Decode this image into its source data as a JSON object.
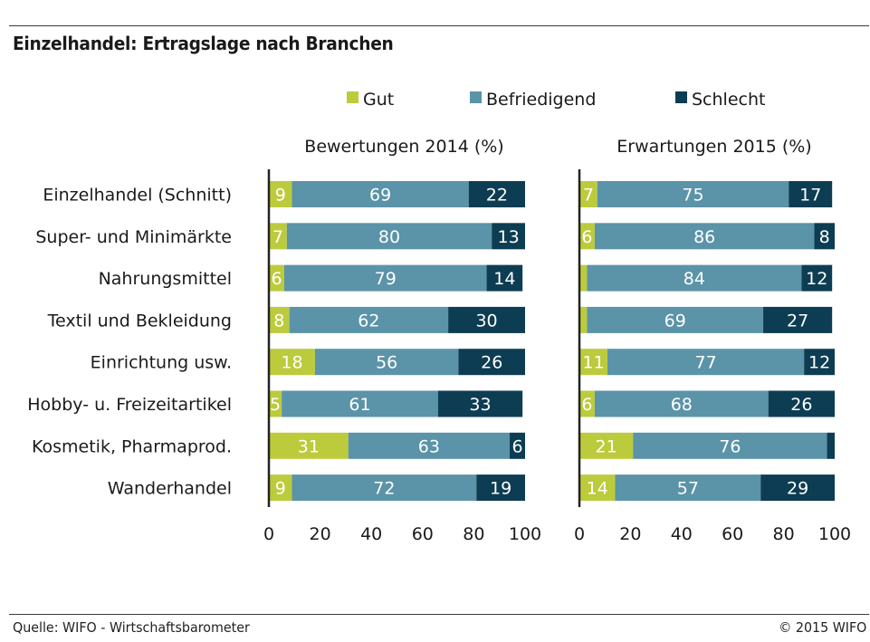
{
  "title": "Einzelhandel: Ertragslage nach Branchen",
  "source": "Quelle: WIFO - Wirtschaftsbarometer",
  "copyright": "© 2015 WIFO",
  "colors": {
    "gut": "#bccb3c",
    "befriedigend": "#5b93a8",
    "schlecht": "#0d3d52",
    "text": "#1a1a1a",
    "axis": "#222222"
  },
  "chart_data": {
    "type": "bar",
    "stacked": true,
    "orientation": "horizontal",
    "legend": [
      "Gut",
      "Befriedigend",
      "Schlecht"
    ],
    "legend_position": "top",
    "categories": [
      "Einzelhandel (Schnitt)",
      "Super- und Minimärkte",
      "Nahrungsmittel",
      "Textil und Bekleidung",
      "Einrichtung usw.",
      "Hobby- u. Freizeitartikel",
      "Kosmetik, Pharmaprod.",
      "Wanderhandel"
    ],
    "xlim": [
      0,
      100
    ],
    "xticks": [
      0,
      20,
      40,
      60,
      80,
      100
    ],
    "panels": [
      {
        "title": "Bewertungen 2014 (%)",
        "series": [
          {
            "name": "Gut",
            "values": [
              9,
              7,
              6,
              8,
              18,
              5,
              31,
              9
            ]
          },
          {
            "name": "Befriedigend",
            "values": [
              69,
              80,
              79,
              62,
              56,
              61,
              63,
              72
            ]
          },
          {
            "name": "Schlecht",
            "values": [
              22,
              13,
              14,
              30,
              26,
              33,
              6,
              19
            ]
          }
        ],
        "labels": [
          [
            "9",
            "7",
            "6",
            "8",
            "18",
            "5",
            "31",
            "9"
          ],
          [
            "69",
            "80",
            "79",
            "62",
            "56",
            "61",
            "63",
            "72"
          ],
          [
            "22",
            "13",
            "14",
            "30",
            "26",
            "33",
            "6",
            "19"
          ]
        ]
      },
      {
        "title": "Erwartungen 2015 (%)",
        "series": [
          {
            "name": "Gut",
            "values": [
              7,
              6,
              3,
              3,
              11,
              6,
              21,
              14
            ]
          },
          {
            "name": "Befriedigend",
            "values": [
              75,
              86,
              84,
              69,
              77,
              68,
              76,
              57
            ]
          },
          {
            "name": "Schlecht",
            "values": [
              17,
              8,
              12,
              27,
              12,
              26,
              3,
              29
            ]
          }
        ],
        "labels": [
          [
            "7",
            "6",
            "",
            "",
            "11",
            "6",
            "21",
            "14"
          ],
          [
            "75",
            "86",
            "84",
            "69",
            "77",
            "68",
            "76",
            "57"
          ],
          [
            "17",
            "8",
            "12",
            "27",
            "12",
            "26",
            "",
            "29"
          ]
        ]
      }
    ]
  }
}
